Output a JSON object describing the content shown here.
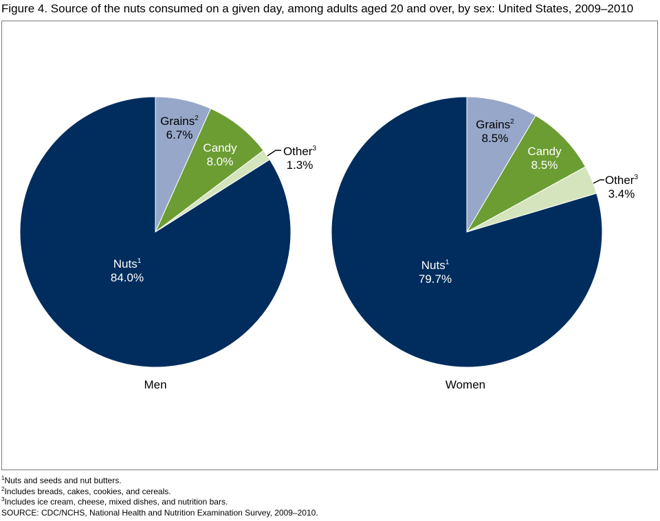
{
  "title": "Figure 4. Source of the nuts consumed on a given day, among adults aged 20 and over, by sex: United States, 2009–2010",
  "chart_data": [
    {
      "type": "pie",
      "xlabel": "Men",
      "slices": [
        {
          "name": "Grains",
          "sup": "2",
          "value": 6.7,
          "label": "6.7%",
          "color": "#97a7c9"
        },
        {
          "name": "Candy",
          "sup": "",
          "value": 8.0,
          "label": "8.0%",
          "color": "#6b9d33"
        },
        {
          "name": "Other",
          "sup": "3",
          "value": 1.3,
          "label": "1.3%",
          "color": "#d4e4bd"
        },
        {
          "name": "Nuts",
          "sup": "1",
          "value": 84.0,
          "label": "84.0%",
          "color": "#002d5d"
        }
      ]
    },
    {
      "type": "pie",
      "xlabel": "Women",
      "slices": [
        {
          "name": "Grains",
          "sup": "2",
          "value": 8.5,
          "label": "8.5%",
          "color": "#97a7c9"
        },
        {
          "name": "Candy",
          "sup": "",
          "value": 8.5,
          "label": "8.5%",
          "color": "#6b9d33"
        },
        {
          "name": "Other",
          "sup": "3",
          "value": 3.4,
          "label": "3.4%",
          "color": "#d4e4bd"
        },
        {
          "name": "Nuts",
          "sup": "1",
          "value": 79.7,
          "label": "79.7%",
          "color": "#002d5d"
        }
      ]
    }
  ],
  "footnotes": [
    {
      "sup": "1",
      "text": "Nuts and seeds and nut butters."
    },
    {
      "sup": "2",
      "text": "Includes breads, cakes, cookies, and cereals."
    },
    {
      "sup": "3",
      "text": "Includes ice cream, cheese, mixed dishes, and nutrition bars."
    }
  ],
  "source": "SOURCE: CDC/NCHS, National Health and Nutrition Examination Survey, 2009–2010."
}
